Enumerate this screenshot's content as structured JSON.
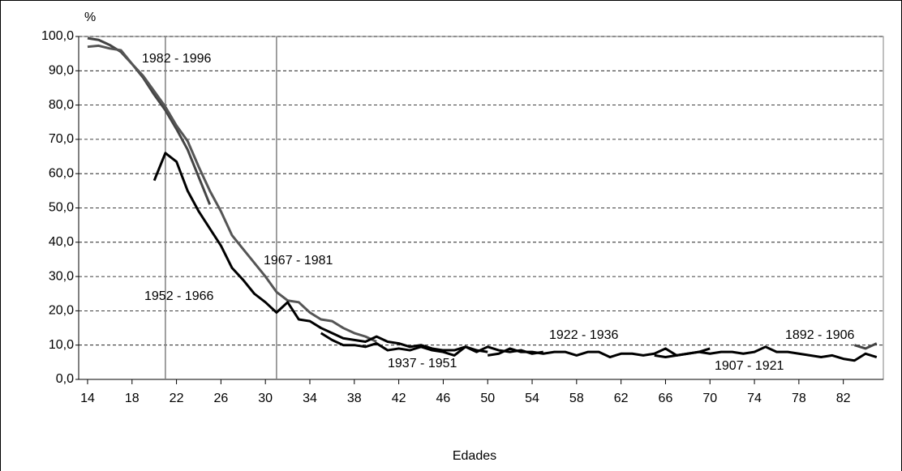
{
  "chart_data": {
    "type": "line",
    "y_unit": "%",
    "xlabel": "Edades",
    "xlim": [
      13.2,
      85.6
    ],
    "xticks": [
      14,
      18,
      22,
      26,
      30,
      34,
      38,
      42,
      46,
      50,
      54,
      58,
      62,
      66,
      70,
      74,
      78,
      82
    ],
    "ylim": [
      0,
      100
    ],
    "yticks": [
      {
        "value": 0,
        "label": "0,0"
      },
      {
        "value": 10,
        "label": "10,0"
      },
      {
        "value": 20,
        "label": "20,0"
      },
      {
        "value": 30,
        "label": "30,0"
      },
      {
        "value": 40,
        "label": "40,0"
      },
      {
        "value": 50,
        "label": "50,0"
      },
      {
        "value": 60,
        "label": "60,0"
      },
      {
        "value": 70,
        "label": "70,0"
      },
      {
        "value": 80,
        "label": "80,0"
      },
      {
        "value": 90,
        "label": "90,0"
      },
      {
        "value": 100,
        "label": "100,0"
      }
    ],
    "grid": true,
    "vlines": [
      21,
      31
    ],
    "series": [
      {
        "name": "1982 - 1996",
        "color": "#444444",
        "x": [
          14,
          15,
          16,
          17,
          18,
          19,
          20,
          21,
          22,
          23,
          24,
          25
        ],
        "values": [
          99.5,
          99,
          97.5,
          95.5,
          92,
          88,
          83,
          78.5,
          73,
          67,
          59,
          51
        ]
      },
      {
        "name": "1967 - 1981",
        "color": "#555555",
        "x": [
          14,
          15,
          16,
          17,
          18,
          19,
          20,
          21,
          22,
          23,
          24,
          25,
          26,
          27,
          28,
          29,
          30,
          31,
          32,
          33,
          34,
          35,
          36,
          37,
          38,
          39,
          40
        ],
        "values": [
          97,
          97.3,
          96.5,
          96,
          92,
          88.5,
          84,
          79.5,
          74,
          69.5,
          62,
          55,
          49,
          42,
          38,
          34,
          30,
          25.5,
          23,
          22.5,
          19.5,
          17.5,
          17,
          15,
          13.5,
          12.5,
          11
        ]
      },
      {
        "name": "1952 - 1966",
        "color": "#000000",
        "x": [
          20,
          21,
          22,
          23,
          24,
          25,
          26,
          27,
          28,
          29,
          30,
          31,
          32,
          33,
          34,
          35,
          36,
          37,
          38,
          39,
          40,
          41,
          42,
          43,
          44,
          45,
          46,
          47,
          48,
          49,
          50
        ],
        "values": [
          58,
          66,
          63.5,
          55,
          49,
          44,
          39,
          32.5,
          29,
          25,
          22.5,
          19.5,
          22.5,
          17.5,
          17,
          15,
          13.5,
          12,
          11.5,
          11,
          12.5,
          11,
          10.5,
          9.5,
          10,
          9,
          8.5,
          8.5,
          9.5,
          8.5,
          8
        ]
      },
      {
        "name": "1937 - 1951",
        "color": "#000000",
        "x": [
          35,
          36,
          37,
          38,
          39,
          40,
          41,
          42,
          43,
          44,
          45,
          46,
          47,
          48,
          49,
          50,
          51,
          52,
          53,
          54,
          55
        ],
        "values": [
          13.5,
          11.5,
          10,
          10,
          9.5,
          10.5,
          8.5,
          9,
          8.5,
          9.5,
          8.5,
          8,
          7,
          9.5,
          8,
          9.5,
          8.5,
          8,
          8.5,
          7.5,
          8
        ]
      },
      {
        "name": "1922 - 1936",
        "color": "#000000",
        "x": [
          50,
          51,
          52,
          53,
          54,
          55,
          56,
          57,
          58,
          59,
          60,
          61,
          62,
          63,
          64,
          65,
          66,
          67,
          68,
          69,
          70
        ],
        "values": [
          7,
          7.5,
          9,
          8,
          8,
          7.5,
          8,
          8,
          7,
          8,
          8,
          6.5,
          7.5,
          7.5,
          7,
          7.5,
          9,
          7,
          7.5,
          8,
          9
        ]
      },
      {
        "name": "1907 - 1921",
        "color": "#000000",
        "x": [
          65,
          66,
          67,
          68,
          69,
          70,
          71,
          72,
          73,
          74,
          75,
          76,
          77,
          78,
          79,
          80,
          81,
          82,
          83,
          84,
          85
        ],
        "values": [
          7,
          6.5,
          7,
          7.5,
          8,
          7.5,
          8,
          8,
          7.5,
          8,
          9.5,
          8,
          8,
          7.5,
          7,
          6.5,
          7,
          6,
          5.5,
          7.5,
          6.5
        ]
      },
      {
        "name": "1892 - 1906",
        "color": "#444444",
        "x": [
          83,
          84,
          85
        ],
        "values": [
          10,
          9,
          10.5
        ]
      }
    ]
  }
}
